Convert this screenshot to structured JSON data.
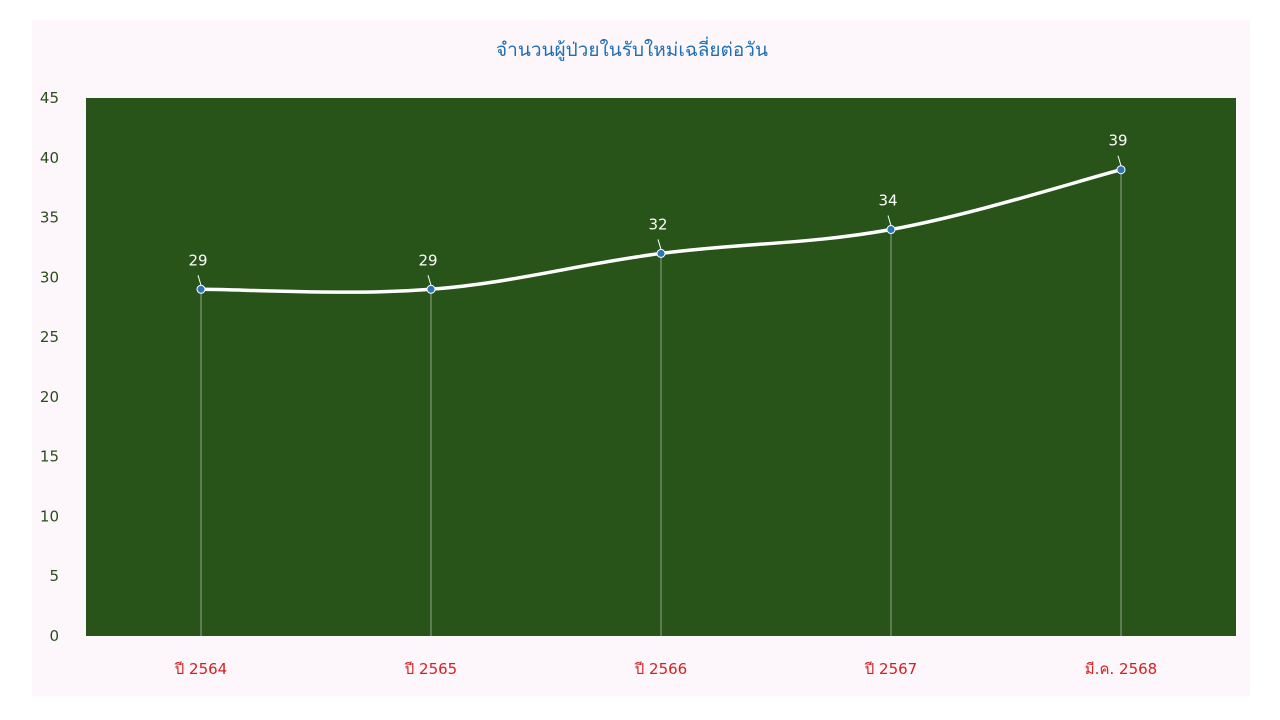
{
  "chart_data": {
    "type": "line",
    "title": "จำนวนผู้ป่วยในรับใหม่เฉลี่ยต่อวัน",
    "categories": [
      "ปี 2564",
      "ปี 2565",
      "ปี 2566",
      "ปี 2567",
      "มี.ค. 2568"
    ],
    "series": [
      {
        "values": [
          29,
          29,
          32,
          34,
          39
        ]
      }
    ],
    "ylim": [
      0,
      45
    ],
    "yticks": [
      0,
      5,
      10,
      15,
      20,
      25,
      30,
      35,
      40,
      45
    ],
    "smooth": true,
    "grid": "vertical drop lines",
    "legend": "none",
    "colors": {
      "plot_background": "#285419",
      "line": "#ffffff",
      "marker": "#2e75b6",
      "drop_line": "#6f8a66",
      "title": "#1f6fb5",
      "x_tick_labels": "#d42020",
      "y_tick_labels": "#2a4d1a",
      "data_labels": "#ffffff"
    }
  }
}
